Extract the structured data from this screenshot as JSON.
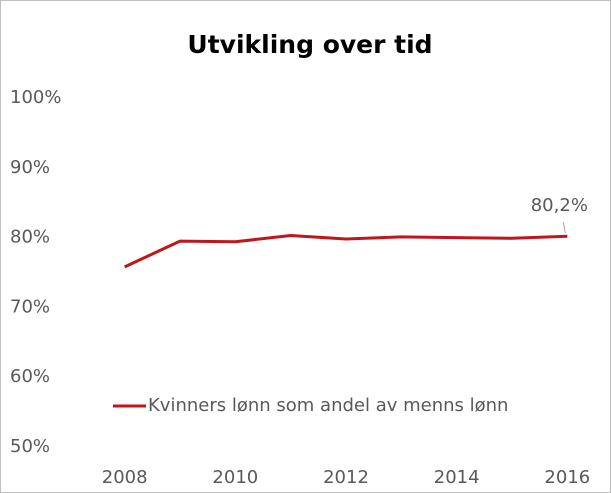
{
  "chart_data": {
    "type": "line",
    "title": "Utvikling over tid",
    "x": [
      2008,
      2009,
      2010,
      2011,
      2012,
      2013,
      2014,
      2015,
      2016
    ],
    "series": [
      {
        "name": "Kvinners lønn som andel av menns lønn",
        "color": "#c0161b",
        "values": [
          75.8,
          79.5,
          79.4,
          80.3,
          79.8,
          80.1,
          80.0,
          79.9,
          80.2
        ],
        "value_labels": [
          null,
          null,
          null,
          null,
          null,
          null,
          null,
          null,
          "80,2%"
        ]
      }
    ],
    "xlim": [
      2007.5,
      2016.5
    ],
    "xticks": [
      2008,
      2010,
      2012,
      2014,
      2016
    ],
    "ylim": [
      50,
      100
    ],
    "yticks": [
      {
        "value": 50,
        "label": "50%"
      },
      {
        "value": 60,
        "label": "60%"
      },
      {
        "value": 70,
        "label": "70%"
      },
      {
        "value": 80,
        "label": "80%"
      },
      {
        "value": 90,
        "label": "90%"
      },
      {
        "value": 100,
        "label": "100%"
      }
    ],
    "grid": false,
    "legend": "lower left"
  }
}
